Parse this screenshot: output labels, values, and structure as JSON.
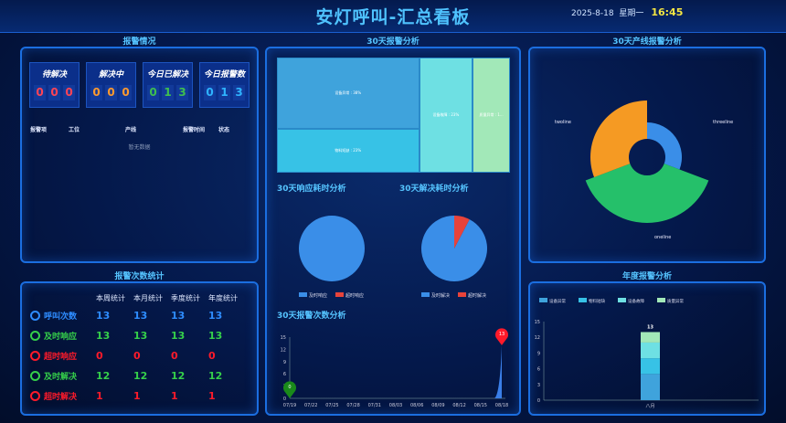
{
  "header": {
    "title": "安灯呼叫-汇总看板",
    "date": "2025-8-18",
    "weekday": "星期一",
    "time": "16:45"
  },
  "alarm_status": {
    "title": "报警情况",
    "cards": [
      {
        "label": "待解决",
        "digits": [
          "0",
          "0",
          "0"
        ],
        "color": "#ff4455"
      },
      {
        "label": "解决中",
        "digits": [
          "0",
          "0",
          "0"
        ],
        "color": "#ff9a2e"
      },
      {
        "label": "今日已解决",
        "digits": [
          "0",
          "1",
          "3"
        ],
        "color": "#3fbf4f"
      },
      {
        "label": "今日报警数",
        "digits": [
          "0",
          "1",
          "3"
        ],
        "color": "#2fb4ff"
      }
    ],
    "columns": [
      "报警项",
      "工位",
      "产线",
      "报警时间",
      "状态"
    ],
    "empty_text": "暂无数据"
  },
  "alarm_stats": {
    "title": "报警次数统计",
    "columns": [
      "本周统计",
      "本月统计",
      "季度统计",
      "年度统计"
    ],
    "rows": [
      {
        "label": "呼叫次数",
        "icon": "call-icon",
        "color": "#2e8cff",
        "values": [
          "13",
          "13",
          "13",
          "13"
        ]
      },
      {
        "label": "及时响应",
        "icon": "clock-icon",
        "color": "#35d04a",
        "values": [
          "13",
          "13",
          "13",
          "13"
        ]
      },
      {
        "label": "超时响应",
        "icon": "overtime-clock-icon",
        "color": "#ff1a2a",
        "values": [
          "0",
          "0",
          "0",
          "0"
        ]
      },
      {
        "label": "及时解决",
        "icon": "clock-icon",
        "color": "#35d04a",
        "values": [
          "12",
          "12",
          "12",
          "12"
        ]
      },
      {
        "label": "超时解决",
        "icon": "overtime-clock-icon",
        "color": "#ff1a2a",
        "values": [
          "1",
          "1",
          "1",
          "1"
        ]
      }
    ]
  },
  "center": {
    "title": "30天报警分析",
    "response_title": "30天响应耗时分析",
    "resolve_title": "30天解决耗时分析",
    "count_title": "30天报警次数分析"
  },
  "right": {
    "line_title": "30天产线报警分析",
    "annual_title": "年度报警分析"
  },
  "chart_data": [
    {
      "type": "treemap",
      "items": [
        {
          "name": "设备异常",
          "percent": 38,
          "label": "设备异常 : 38%",
          "color": "#3fa3dc"
        },
        {
          "name": "物料短缺",
          "percent": 23,
          "label": "物料短缺 : 23%",
          "color": "#37c2e6"
        },
        {
          "name": "设备故障",
          "percent": 23,
          "label": "设备故障 : 23%",
          "color": "#6ee0e3"
        },
        {
          "name": "质量异常",
          "percent": 15,
          "label": "质量异常 : 1...",
          "color": "#a2e8b8"
        }
      ]
    },
    {
      "type": "pie",
      "values": [
        13,
        0
      ],
      "legend": [
        "及时响应",
        "超时响应"
      ],
      "colors": [
        "#3a8ee8",
        "#e8433a"
      ]
    },
    {
      "type": "pie",
      "values": [
        12,
        1
      ],
      "legend": [
        "及时解决",
        "超时解决"
      ],
      "colors": [
        "#3a8ee8",
        "#e8433a"
      ]
    },
    {
      "type": "area",
      "x": [
        "07/19",
        "07/22",
        "07/25",
        "07/28",
        "07/31",
        "08/03",
        "08/06",
        "08/09",
        "08/12",
        "08/15",
        "08/18"
      ],
      "yticks": [
        "0",
        "3",
        "6",
        "9",
        "12",
        "15"
      ],
      "ylim": [
        0,
        15
      ],
      "values_first": 0,
      "values_last": 13,
      "markers": [
        {
          "label": "0",
          "color": "#1a8a1a"
        },
        {
          "label": "13",
          "color": "#ff1a2a"
        }
      ]
    },
    {
      "type": "pie",
      "rose": true,
      "series": [
        {
          "name": "threeline",
          "value": 4,
          "color": "#3a8ee8"
        },
        {
          "name": "oneline",
          "value": 5,
          "color": "#25c06a"
        },
        {
          "name": "twoline",
          "value": 4,
          "color": "#f59a23"
        }
      ]
    },
    {
      "type": "bar",
      "stacked": true,
      "categories": [
        "八月"
      ],
      "yticks": [
        "0",
        "3",
        "6",
        "9",
        "12",
        "15"
      ],
      "ylim": [
        0,
        15
      ],
      "total_label": "13",
      "series": [
        {
          "name": "设备异常",
          "values": [
            5
          ],
          "color": "#3fa3dc"
        },
        {
          "name": "物料短缺",
          "values": [
            3
          ],
          "color": "#37c2e6"
        },
        {
          "name": "设备故障",
          "values": [
            3
          ],
          "color": "#6ee0e3"
        },
        {
          "name": "质量异常",
          "values": [
            2
          ],
          "color": "#a2e8b8"
        }
      ]
    }
  ]
}
